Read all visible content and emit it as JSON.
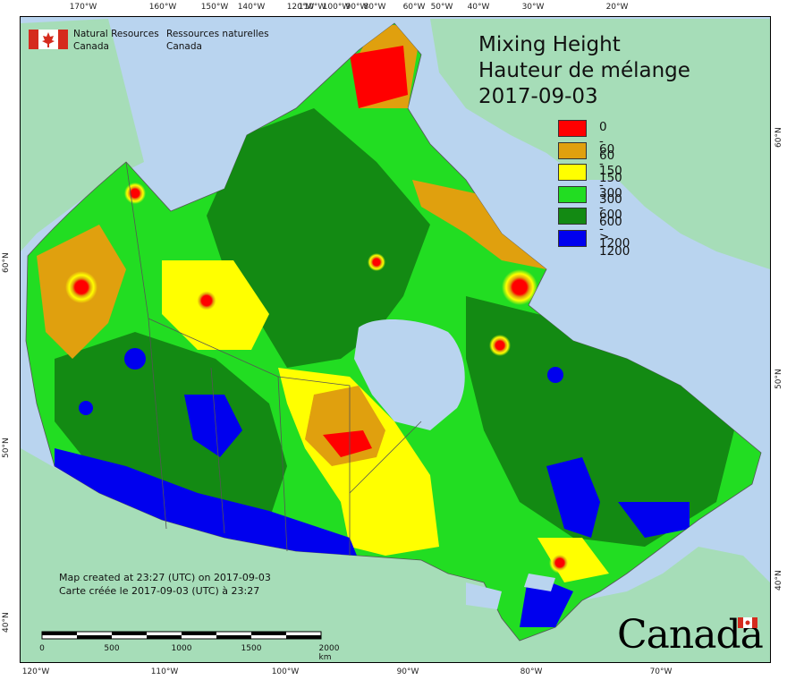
{
  "map": {
    "title_en": "Mixing Height",
    "title_fr": "Hauteur de mélange",
    "date": "2017-09-03",
    "agency": {
      "en_line1": "Natural Resources",
      "en_line2": "Canada",
      "fr_line1": "Ressources naturelles",
      "fr_line2": "Canada"
    },
    "credit": {
      "line_en": "Map created at 23:27 (UTC) on 2017-09-03",
      "line_fr": "Carte créée le 2017-09-03 (UTC) à 23:27"
    },
    "wordmark": "Canada"
  },
  "legend": [
    {
      "label": "0 - 60",
      "color": "#ff0000"
    },
    {
      "label": "60 - 150",
      "color": "#e0a00e"
    },
    {
      "label": "150 - 300",
      "color": "#ffff00"
    },
    {
      "label": "300 - 600",
      "color": "#22dd22"
    },
    {
      "label": "600 - 1200",
      "color": "#138a13"
    },
    {
      "label": "> 1200",
      "color": "#0000ee"
    }
  ],
  "graticule": {
    "top": [
      "170°W",
      "160°W",
      "150°W",
      "140°W",
      "120°W",
      "110°W",
      "100°W",
      "90°W",
      "80°W",
      "60°W",
      "50°W",
      "40°W",
      "30°W",
      "20°W"
    ],
    "bottom": [
      "120°W",
      "110°W",
      "100°W",
      "90°W",
      "80°W",
      "70°W"
    ],
    "left": [
      "60°N",
      "50°N",
      "40°N"
    ],
    "right": [
      "60°N",
      "50°N",
      "40°N"
    ]
  },
  "scale_bar": {
    "labels": [
      "0",
      "500",
      "1000",
      "1500",
      "2000 km"
    ]
  },
  "colors": {
    "water": "#b9d4ef",
    "land_outside": "#a6ddb8",
    "border": "#555555"
  }
}
